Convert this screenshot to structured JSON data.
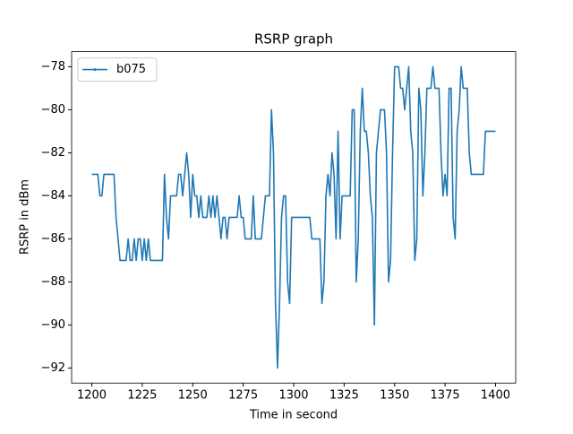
{
  "chart_data": {
    "type": "line",
    "title": "RSRP graph",
    "x_label": "Time in second",
    "y_label": "RSRP in dBm",
    "x": [
      1200,
      1201,
      1202,
      1203,
      1204,
      1205,
      1206,
      1207,
      1208,
      1209,
      1210,
      1211,
      1212,
      1213,
      1214,
      1215,
      1216,
      1217,
      1218,
      1219,
      1220,
      1221,
      1222,
      1223,
      1224,
      1225,
      1226,
      1227,
      1228,
      1229,
      1230,
      1231,
      1232,
      1233,
      1234,
      1235,
      1236,
      1237,
      1238,
      1239,
      1240,
      1241,
      1242,
      1243,
      1244,
      1245,
      1246,
      1247,
      1248,
      1249,
      1250,
      1251,
      1252,
      1253,
      1254,
      1255,
      1256,
      1257,
      1258,
      1259,
      1260,
      1261,
      1262,
      1263,
      1264,
      1265,
      1266,
      1267,
      1268,
      1269,
      1270,
      1271,
      1272,
      1273,
      1274,
      1275,
      1276,
      1277,
      1278,
      1279,
      1280,
      1281,
      1282,
      1283,
      1284,
      1285,
      1286,
      1287,
      1288,
      1289,
      1290,
      1291,
      1292,
      1293,
      1294,
      1295,
      1296,
      1297,
      1298,
      1299,
      1300,
      1301,
      1302,
      1303,
      1304,
      1305,
      1306,
      1307,
      1308,
      1309,
      1310,
      1311,
      1312,
      1313,
      1314,
      1315,
      1316,
      1317,
      1318,
      1319,
      1320,
      1321,
      1322,
      1323,
      1324,
      1325,
      1326,
      1327,
      1328,
      1329,
      1330,
      1331,
      1332,
      1333,
      1334,
      1335,
      1336,
      1337,
      1338,
      1339,
      1340,
      1341,
      1342,
      1343,
      1344,
      1345,
      1346,
      1347,
      1348,
      1349,
      1350,
      1351,
      1352,
      1353,
      1354,
      1355,
      1356,
      1357,
      1358,
      1359,
      1360,
      1361,
      1362,
      1363,
      1364,
      1365,
      1366,
      1367,
      1368,
      1369,
      1370,
      1371,
      1372,
      1373,
      1374,
      1375,
      1376,
      1377,
      1378,
      1379,
      1380,
      1381,
      1382,
      1383,
      1384,
      1385,
      1386,
      1387,
      1388,
      1389,
      1390,
      1391,
      1392,
      1393,
      1394,
      1395,
      1396,
      1397,
      1398,
      1399,
      1400
    ],
    "series": [
      {
        "name": "b075",
        "color": "#1f77b4",
        "values": [
          -83,
          -83,
          -83,
          -83,
          -84,
          -84,
          -83,
          -83,
          -83,
          -83,
          -83,
          -83,
          -85,
          -86,
          -87,
          -87,
          -87,
          -87,
          -86,
          -87,
          -87,
          -86,
          -87,
          -86,
          -86,
          -87,
          -86,
          -87,
          -86,
          -87,
          -87,
          -87,
          -87,
          -87,
          -87,
          -87,
          -83,
          -85,
          -86,
          -84,
          -84,
          -84,
          -84,
          -83,
          -83,
          -84,
          -83,
          -82,
          -83,
          -85,
          -83,
          -84,
          -84,
          -85,
          -84,
          -85,
          -85,
          -85,
          -84,
          -85,
          -84,
          -85,
          -84,
          -85,
          -86,
          -85,
          -85,
          -86,
          -85,
          -85,
          -85,
          -85,
          -85,
          -84,
          -85,
          -85,
          -86,
          -86,
          -86,
          -86,
          -84,
          -86,
          -86,
          -86,
          -86,
          -85,
          -84,
          -84,
          -84,
          -80,
          -82,
          -89,
          -92,
          -89,
          -85,
          -84,
          -84,
          -88,
          -89,
          -85,
          -85,
          -85,
          -85,
          -85,
          -85,
          -85,
          -85,
          -85,
          -85,
          -86,
          -86,
          -86,
          -86,
          -86,
          -89,
          -88,
          -84,
          -83,
          -84,
          -82,
          -83,
          -86,
          -81,
          -86,
          -84,
          -84,
          -84,
          -84,
          -84,
          -80,
          -80,
          -88,
          -86,
          -81,
          -79,
          -81,
          -81,
          -82,
          -84,
          -85,
          -90,
          -82,
          -81,
          -80,
          -80,
          -80,
          -82,
          -88,
          -87,
          -82,
          -78,
          -78,
          -78,
          -79,
          -79,
          -80,
          -79,
          -78,
          -81,
          -82,
          -87,
          -86,
          -79,
          -80,
          -84,
          -82,
          -79,
          -79,
          -79,
          -78,
          -79,
          -79,
          -79,
          -82,
          -84,
          -83,
          -84,
          -79,
          -79,
          -85,
          -86,
          -81,
          -80,
          -78,
          -79,
          -79,
          -79,
          -82,
          -83,
          -83,
          -83,
          -83,
          -83,
          -83,
          -83,
          -81,
          -81,
          -81,
          -81,
          -81,
          -81
        ]
      }
    ],
    "xlim": [
      1190,
      1410
    ],
    "ylim": [
      -92.7,
      -77.3
    ],
    "xticks": [
      1200,
      1225,
      1250,
      1275,
      1300,
      1325,
      1350,
      1375,
      1400
    ],
    "yticks": [
      {
        "value": -92,
        "label": "−92"
      },
      {
        "value": -90,
        "label": "−90"
      },
      {
        "value": -88,
        "label": "−88"
      },
      {
        "value": -86,
        "label": "−86"
      },
      {
        "value": -84,
        "label": "−84"
      },
      {
        "value": -82,
        "label": "−82"
      },
      {
        "value": -80,
        "label": "−80"
      },
      {
        "value": -78,
        "label": "−78"
      }
    ],
    "legend": "upper left"
  }
}
